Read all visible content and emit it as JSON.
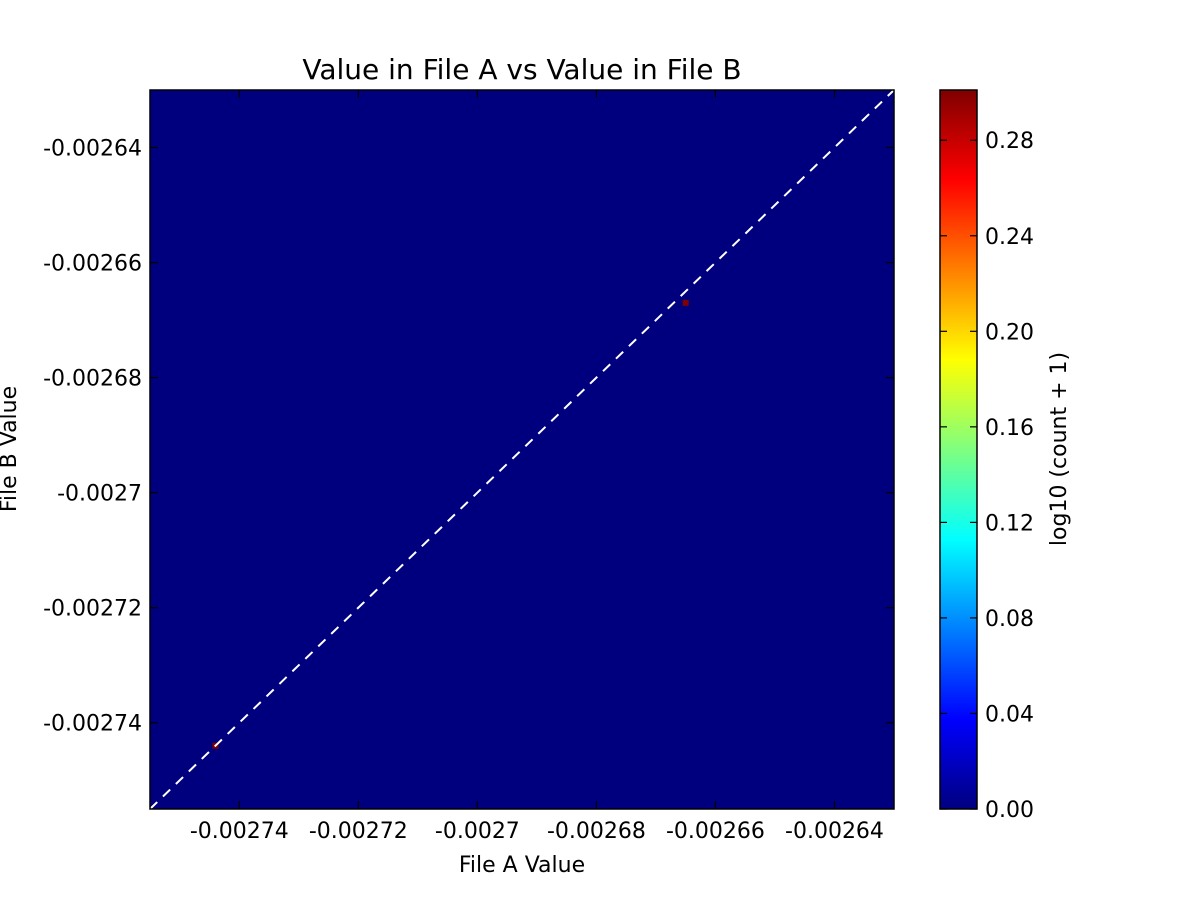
{
  "chart_data": {
    "type": "heatmap",
    "title": "Value in File A vs Value in File B",
    "xlabel": "File A Value",
    "ylabel": "File B Value",
    "xlim": [
      -0.002755,
      -0.00263
    ],
    "ylim": [
      -0.002755,
      -0.00263
    ],
    "x_ticks": [
      -0.00274,
      -0.00272,
      -0.0027,
      -0.00268,
      -0.00266,
      -0.00264
    ],
    "x_tick_labels": [
      "-0.00274",
      "-0.00272",
      "-0.0027",
      "-0.00268",
      "-0.00266",
      "-0.00264"
    ],
    "y_ticks": [
      -0.00264,
      -0.00266,
      -0.00268,
      -0.0027,
      -0.00272,
      -0.00274
    ],
    "y_tick_labels": [
      "-0.00264",
      "-0.00266",
      "-0.00268",
      "-0.0027",
      "-0.00272",
      "-0.00274"
    ],
    "background_value": 0.0,
    "colormap": "jet",
    "colormap_stops": [
      "#00007f",
      "#0000ff",
      "#007fff",
      "#00ffff",
      "#7fff7f",
      "#ffff00",
      "#ff7f00",
      "#ff0000",
      "#7f0000"
    ],
    "cells": [
      {
        "x": -0.002744,
        "y": -0.002744,
        "value": 0.30103
      },
      {
        "x": -0.002665,
        "y": -0.002667,
        "value": 0.30103
      }
    ],
    "reference_line": {
      "style": "dashed",
      "color": "#ffffff",
      "from": [
        -0.002755,
        -0.002755
      ],
      "to": [
        -0.00263,
        -0.00263
      ]
    },
    "colorbar": {
      "label": "log10 (count + 1)",
      "range": [
        0.0,
        0.30103
      ],
      "ticks": [
        0.0,
        0.04,
        0.08,
        0.12,
        0.16,
        0.2,
        0.24,
        0.28
      ],
      "tick_labels": [
        "0.00",
        "0.04",
        "0.08",
        "0.12",
        "0.16",
        "0.20",
        "0.24",
        "0.28"
      ]
    },
    "grid": false,
    "legend": "none"
  }
}
